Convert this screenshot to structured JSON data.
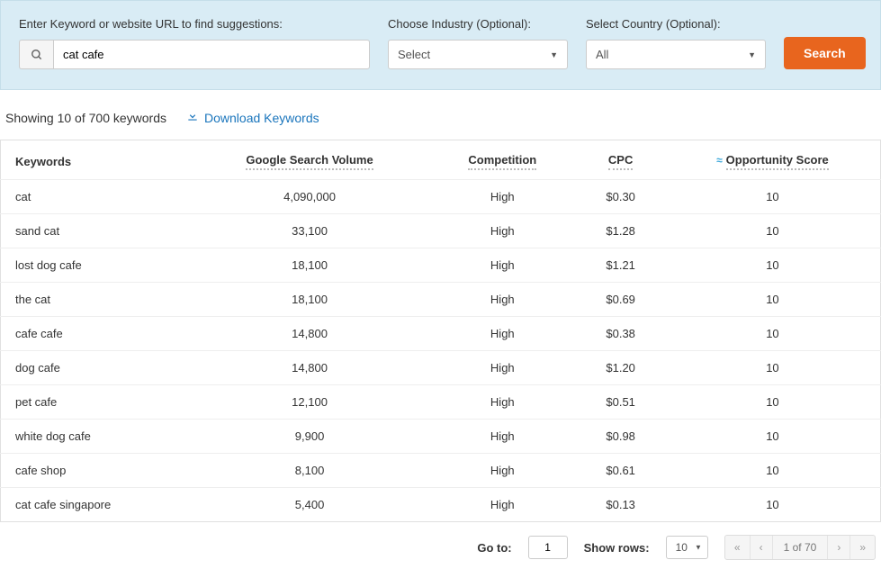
{
  "colors": {
    "panel_bg": "#d9ecf5",
    "panel_border": "#c5dee9",
    "btn_bg": "#e8651e",
    "btn_hover": "#d85a16",
    "link": "#1a75bc",
    "opp_icon": "#3aa7d9",
    "border": "#e0e0e0"
  },
  "search": {
    "label_keyword": "Enter Keyword or website URL to find suggestions:",
    "label_industry": "Choose Industry (Optional):",
    "label_country": "Select Country (Optional):",
    "keyword_value": "cat cafe",
    "industry_value": "Select",
    "country_value": "All",
    "button_label": "Search"
  },
  "summary": {
    "text": "Showing 10 of 700 keywords",
    "download_label": "Download Keywords"
  },
  "table": {
    "columns": {
      "keywords": "Keywords",
      "volume": "Google Search Volume",
      "competition": "Competition",
      "cpc": "CPC",
      "opportunity": "Opportunity Score"
    },
    "rows": [
      {
        "keyword": "cat",
        "volume": "4,090,000",
        "competition": "High",
        "cpc": "$0.30",
        "opportunity": "10"
      },
      {
        "keyword": "sand cat",
        "volume": "33,100",
        "competition": "High",
        "cpc": "$1.28",
        "opportunity": "10"
      },
      {
        "keyword": "lost dog cafe",
        "volume": "18,100",
        "competition": "High",
        "cpc": "$1.21",
        "opportunity": "10"
      },
      {
        "keyword": "the cat",
        "volume": "18,100",
        "competition": "High",
        "cpc": "$0.69",
        "opportunity": "10"
      },
      {
        "keyword": "cafe cafe",
        "volume": "14,800",
        "competition": "High",
        "cpc": "$0.38",
        "opportunity": "10"
      },
      {
        "keyword": "dog cafe",
        "volume": "14,800",
        "competition": "High",
        "cpc": "$1.20",
        "opportunity": "10"
      },
      {
        "keyword": "pet cafe",
        "volume": "12,100",
        "competition": "High",
        "cpc": "$0.51",
        "opportunity": "10"
      },
      {
        "keyword": "white dog cafe",
        "volume": "9,900",
        "competition": "High",
        "cpc": "$0.98",
        "opportunity": "10"
      },
      {
        "keyword": "cafe shop",
        "volume": "8,100",
        "competition": "High",
        "cpc": "$0.61",
        "opportunity": "10"
      },
      {
        "keyword": "cat cafe singapore",
        "volume": "5,400",
        "competition": "High",
        "cpc": "$0.13",
        "opportunity": "10"
      }
    ]
  },
  "pagination": {
    "goto_label": "Go to:",
    "goto_value": "1",
    "rows_label": "Show rows:",
    "rows_value": "10",
    "page_info": "1 of 70",
    "first": "«",
    "prev": "‹",
    "next": "›",
    "last": "»"
  }
}
